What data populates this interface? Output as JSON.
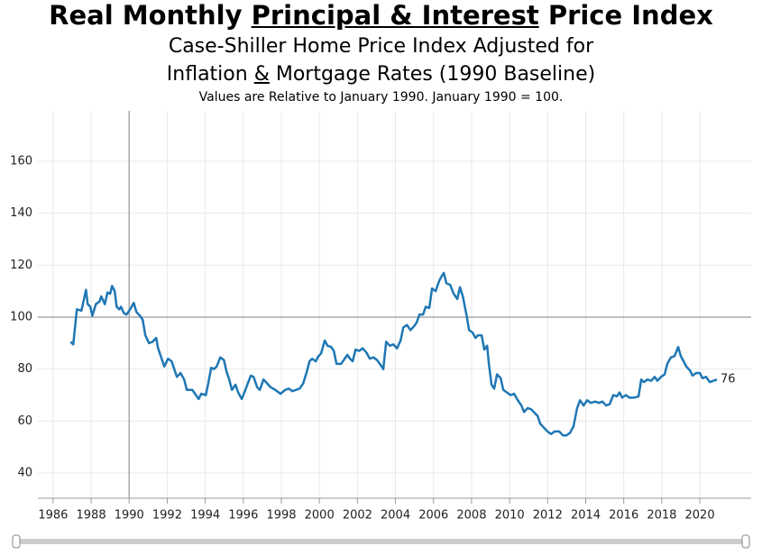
{
  "chart_data": {
    "type": "line",
    "title": [
      "Real Monthly ",
      "Principal & Interest",
      " Price Index"
    ],
    "subtitle": [
      "Case-Shiller Home Price Index Adjusted for",
      "Inflation ",
      "&",
      " Mortgage Rates (1990 Baseline)"
    ],
    "note": "Values are Relative to January 1990. January 1990 = 100.",
    "x": [
      1986.92,
      1987.06,
      1987.25,
      1987.49,
      1987.73,
      1987.82,
      1987.96,
      1988.06,
      1988.25,
      1988.44,
      1988.53,
      1988.72,
      1988.86,
      1989.0,
      1989.1,
      1989.24,
      1989.34,
      1989.48,
      1989.57,
      1989.72,
      1989.86,
      1990.05,
      1990.24,
      1990.38,
      1990.57,
      1990.71,
      1990.85,
      1991.04,
      1991.23,
      1991.42,
      1991.52,
      1991.66,
      1991.85,
      1992.04,
      1992.23,
      1992.37,
      1992.51,
      1992.7,
      1992.89,
      1993.03,
      1993.32,
      1993.51,
      1993.65,
      1993.79,
      1994.03,
      1994.17,
      1994.31,
      1994.45,
      1994.6,
      1994.79,
      1994.98,
      1995.12,
      1995.26,
      1995.4,
      1995.59,
      1995.73,
      1995.92,
      1996.11,
      1996.26,
      1996.4,
      1996.54,
      1996.73,
      1996.87,
      1997.06,
      1997.25,
      1997.44,
      1997.68,
      1997.96,
      1998.2,
      1998.39,
      1998.58,
      1998.77,
      1998.96,
      1999.15,
      1999.34,
      1999.48,
      1999.62,
      1999.81,
      1999.95,
      2000.09,
      2000.28,
      2000.43,
      2000.62,
      2000.76,
      2000.9,
      2001.14,
      2001.33,
      2001.47,
      2001.61,
      2001.75,
      2001.9,
      2002.09,
      2002.27,
      2002.46,
      2002.65,
      2002.84,
      2003.03,
      2003.18,
      2003.36,
      2003.51,
      2003.7,
      2003.89,
      2004.08,
      2004.27,
      2004.41,
      2004.6,
      2004.79,
      2004.98,
      2005.12,
      2005.26,
      2005.45,
      2005.59,
      2005.78,
      2005.92,
      2006.11,
      2006.3,
      2006.45,
      2006.54,
      2006.68,
      2006.87,
      2007.06,
      2007.25,
      2007.39,
      2007.54,
      2007.73,
      2007.87,
      2008.06,
      2008.2,
      2008.34,
      2008.53,
      2008.67,
      2008.82,
      2008.91,
      2009.05,
      2009.19,
      2009.34,
      2009.53,
      2009.67,
      2009.86,
      2010.05,
      2010.24,
      2010.43,
      2010.62,
      2010.76,
      2010.95,
      2011.14,
      2011.33,
      2011.47,
      2011.61,
      2011.8,
      2011.99,
      2012.18,
      2012.37,
      2012.61,
      2012.8,
      2012.99,
      2013.18,
      2013.36,
      2013.55,
      2013.7,
      2013.89,
      2014.08,
      2014.26,
      2014.5,
      2014.69,
      2014.88,
      2015.07,
      2015.26,
      2015.45,
      2015.64,
      2015.78,
      2015.92,
      2016.11,
      2016.3,
      2016.54,
      2016.78,
      2016.92,
      2017.06,
      2017.25,
      2017.44,
      2017.63,
      2017.77,
      2017.96,
      2018.15,
      2018.29,
      2018.48,
      2018.67,
      2018.86,
      2019.0,
      2019.15,
      2019.29,
      2019.48,
      2019.62,
      2019.81,
      2020.0,
      2020.14,
      2020.33,
      2020.52,
      2020.71,
      2020.9
    ],
    "series": [
      {
        "color": "#1f77b4",
        "values": [
          90.5,
          89.5,
          103,
          102.5,
          110.5,
          105,
          104,
          100.5,
          105,
          106,
          108,
          105,
          109.5,
          109,
          112,
          110,
          104,
          103,
          104,
          101.5,
          101,
          103,
          105.5,
          102,
          100.5,
          99,
          93,
          90,
          90.5,
          92,
          88,
          85,
          81,
          84,
          83,
          80,
          77,
          78.5,
          76,
          72,
          72,
          70,
          68.5,
          70.5,
          70,
          75,
          80.5,
          80,
          81,
          84.5,
          83.5,
          79,
          76,
          72,
          74,
          71,
          68.5,
          72,
          75,
          77.5,
          77,
          73,
          72,
          76,
          74.5,
          73,
          72,
          70.5,
          72,
          72.5,
          71.5,
          72,
          72.5,
          74.5,
          79,
          83,
          84,
          83,
          85,
          86,
          91,
          89,
          88.5,
          87,
          82,
          82,
          84,
          85.5,
          84,
          83,
          87.5,
          87,
          88,
          86.5,
          84,
          84.5,
          83.5,
          82,
          80,
          90.5,
          89,
          89.5,
          88,
          91,
          96,
          97,
          95,
          96.5,
          98,
          101,
          101,
          104,
          103.5,
          111,
          110,
          114,
          116,
          117,
          113,
          112.5,
          109,
          107,
          111.5,
          108,
          101,
          95,
          94,
          92,
          93,
          93,
          87.5,
          89,
          82,
          74,
          72.5,
          78,
          76.5,
          72,
          71,
          70,
          70.5,
          68,
          66,
          63.5,
          65,
          64.5,
          63,
          62,
          59,
          57.5,
          56,
          55,
          56,
          56,
          54.5,
          54.5,
          55.5,
          58,
          65,
          68,
          66,
          68,
          67,
          67.5,
          67,
          67.5,
          66,
          66.5,
          70,
          69.5,
          71,
          69,
          70,
          69,
          69,
          69.5,
          76,
          75,
          76,
          75.5,
          77,
          75.5,
          77,
          78,
          82,
          84.5,
          85,
          88.5,
          85,
          83,
          81,
          79.5,
          77.5,
          78.5,
          78.5,
          76.5,
          77,
          75,
          75.5,
          76
        ]
      }
    ],
    "xlim": [
      1985.2,
      2022.7
    ],
    "ylim": [
      30.3,
      179.4
    ],
    "xticks": [
      1986,
      1988,
      1990,
      1992,
      1994,
      1996,
      1998,
      2000,
      2002,
      2004,
      2006,
      2008,
      2010,
      2012,
      2014,
      2016,
      2018,
      2020
    ],
    "yticks": [
      40,
      60,
      80,
      100,
      120,
      140,
      160
    ],
    "hline": 100,
    "vline": 1990,
    "grid": true
  }
}
